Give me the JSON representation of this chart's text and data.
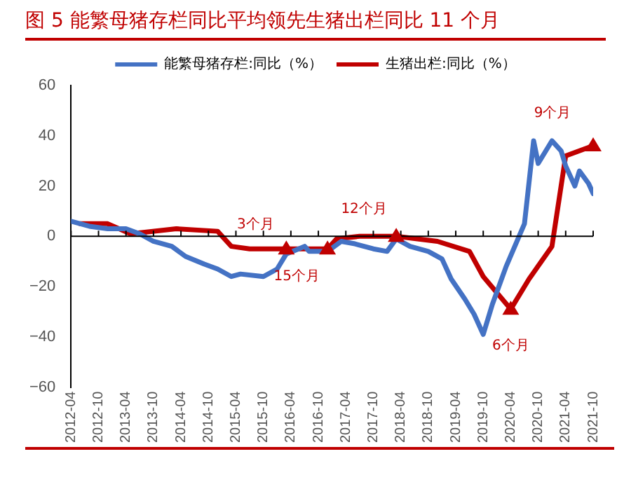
{
  "chart_data": {
    "type": "line",
    "title": "图 5 能繁母猪存栏同比平均领先生猪出栏同比 11 个月",
    "series": [
      {
        "name": "能繁母猪存栏:同比（%）",
        "color": "#4472c4",
        "x": [
          "2012-04",
          "2012-08",
          "2012-12",
          "2013-04",
          "2013-07",
          "2013-10",
          "2014-02",
          "2014-05",
          "2014-09",
          "2014-12",
          "2015-03",
          "2015-05",
          "2015-10",
          "2016-01",
          "2016-03",
          "2016-07",
          "2016-08",
          "2016-12",
          "2017-03",
          "2017-06",
          "2017-10",
          "2018-01",
          "2018-03",
          "2018-06",
          "2018-10",
          "2019-01",
          "2019-03",
          "2019-06",
          "2019-08",
          "2019-10",
          "2019-12",
          "2020-03",
          "2020-07",
          "2020-09",
          "2020-10",
          "2021-01",
          "2021-03",
          "2021-04",
          "2021-06",
          "2021-07",
          "2021-09",
          "2021-10"
        ],
        "values": [
          6,
          4,
          3,
          3,
          1,
          -2,
          -4,
          -8,
          -11,
          -13,
          -16,
          -15,
          -16,
          -13,
          -7,
          -4,
          -6,
          -6,
          -2,
          -3,
          -5,
          -6,
          -1,
          -4,
          -6,
          -9,
          -17,
          -25,
          -31,
          -39,
          -27,
          -12,
          5,
          38,
          29,
          38,
          34,
          28,
          20,
          26,
          21,
          17
        ]
      },
      {
        "name": "生猪出栏:同比（%）",
        "color": "#c00000",
        "x": [
          "2012-06",
          "2012-12",
          "2013-05",
          "2014-03",
          "2014-12",
          "2015-03",
          "2015-07",
          "2016-03",
          "2016-12",
          "2017-02",
          "2017-07",
          "2018-03",
          "2018-12",
          "2019-07",
          "2019-10",
          "2020-04",
          "2020-08",
          "2021-01",
          "2021-04",
          "2021-10"
        ],
        "values": [
          5,
          5,
          1,
          3,
          2,
          -4,
          -5,
          -5,
          -5,
          -1,
          0,
          0,
          -2,
          -6,
          -16,
          -29,
          -17,
          -4,
          32,
          36
        ]
      }
    ],
    "xlim": [
      "2012-04",
      "2021-10"
    ],
    "xticks": [
      "2012-04",
      "2012-10",
      "2013-04",
      "2013-10",
      "2014-04",
      "2014-10",
      "2015-04",
      "2015-10",
      "2016-04",
      "2016-10",
      "2017-04",
      "2017-10",
      "2018-04",
      "2018-10",
      "2019-04",
      "2019-10",
      "2020-04",
      "2020-10",
      "2021-04",
      "2021-10"
    ],
    "ylim": [
      -60,
      60
    ],
    "yticks": [
      -60,
      -40,
      -20,
      0,
      20,
      40,
      60
    ],
    "legend": "top",
    "grid": false,
    "marker": "none",
    "annotations": [
      {
        "text": "3个月",
        "x": "2016-03",
        "y": -5
      },
      {
        "text": "15个月",
        "x": "2016-12",
        "y": -5
      },
      {
        "text": "12个月",
        "x": "2018-03",
        "y": 0
      },
      {
        "text": "6个月",
        "x": "2020-04",
        "y": -29
      },
      {
        "text": "9个月",
        "x": "2021-10",
        "y": 36
      }
    ],
    "ref_lines": [
      {
        "axis": "y",
        "value": 0,
        "color": "#000000"
      }
    ]
  }
}
